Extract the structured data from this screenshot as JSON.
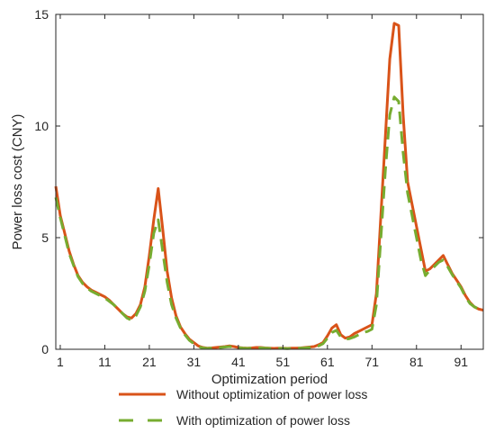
{
  "chart_data": {
    "type": "line",
    "xlabel": "Optimization period",
    "ylabel": "Power loss cost (CNY)",
    "xlim": [
      0,
      96
    ],
    "ylim": [
      0,
      15
    ],
    "x_ticks": [
      1,
      11,
      21,
      31,
      41,
      51,
      61,
      71,
      81,
      91
    ],
    "y_ticks": [
      0,
      5,
      10,
      15
    ],
    "x": [
      0,
      1,
      2,
      3,
      4,
      5,
      6,
      7,
      8,
      9,
      10,
      11,
      12,
      13,
      14,
      15,
      16,
      17,
      18,
      19,
      20,
      21,
      22,
      23,
      24,
      25,
      26,
      27,
      28,
      29,
      30,
      31,
      32,
      33,
      34,
      35,
      36,
      37,
      38,
      39,
      40,
      41,
      42,
      43,
      44,
      45,
      46,
      47,
      48,
      49,
      50,
      51,
      52,
      53,
      54,
      55,
      56,
      57,
      58,
      59,
      60,
      61,
      62,
      63,
      64,
      65,
      66,
      67,
      68,
      69,
      70,
      71,
      72,
      73,
      74,
      75,
      76,
      77,
      78,
      79,
      80,
      81,
      82,
      83,
      84,
      85,
      86,
      87,
      88,
      89,
      90,
      91,
      92,
      93,
      94,
      95,
      96
    ],
    "legend_position": "bottom",
    "series": [
      {
        "name": "Without optimization of power loss",
        "color": "#d95319",
        "style": "solid",
        "values": [
          7.3,
          6.0,
          5.2,
          4.4,
          3.8,
          3.3,
          3.0,
          2.8,
          2.65,
          2.55,
          2.45,
          2.35,
          2.2,
          2.0,
          1.8,
          1.6,
          1.45,
          1.4,
          1.6,
          2.0,
          2.8,
          4.2,
          5.8,
          7.2,
          5.4,
          3.5,
          2.3,
          1.5,
          1.0,
          0.7,
          0.45,
          0.3,
          0.15,
          0.08,
          0.05,
          0.06,
          0.08,
          0.1,
          0.12,
          0.15,
          0.12,
          0.08,
          0.06,
          0.05,
          0.06,
          0.08,
          0.08,
          0.06,
          0.05,
          0.04,
          0.05,
          0.05,
          0.04,
          0.05,
          0.05,
          0.06,
          0.08,
          0.1,
          0.12,
          0.2,
          0.3,
          0.6,
          0.95,
          1.1,
          0.65,
          0.5,
          0.55,
          0.7,
          0.8,
          0.9,
          1.0,
          1.1,
          2.5,
          6.0,
          9.5,
          13.0,
          14.6,
          14.5,
          10.5,
          7.5,
          6.5,
          5.5,
          4.5,
          3.5,
          3.6,
          3.8,
          4.0,
          4.2,
          3.8,
          3.4,
          3.1,
          2.8,
          2.4,
          2.1,
          1.9,
          1.8,
          1.75
        ]
      },
      {
        "name": "With optimization of power loss",
        "color": "#77ac30",
        "style": "dashed",
        "values": [
          6.8,
          5.9,
          5.1,
          4.3,
          3.75,
          3.25,
          2.95,
          2.75,
          2.6,
          2.5,
          2.4,
          2.3,
          2.15,
          2.0,
          1.8,
          1.6,
          1.4,
          1.3,
          1.5,
          1.9,
          2.6,
          3.8,
          5.2,
          5.8,
          4.4,
          3.0,
          2.0,
          1.4,
          0.95,
          0.65,
          0.4,
          0.25,
          0.12,
          0.06,
          0.04,
          0.05,
          0.06,
          0.08,
          0.1,
          0.12,
          0.1,
          0.07,
          0.05,
          0.04,
          0.05,
          0.06,
          0.06,
          0.05,
          0.04,
          0.03,
          0.04,
          0.04,
          0.03,
          0.04,
          0.04,
          0.05,
          0.06,
          0.08,
          0.1,
          0.15,
          0.25,
          0.5,
          0.75,
          0.85,
          0.55,
          0.45,
          0.48,
          0.55,
          0.65,
          0.75,
          0.8,
          0.9,
          2.0,
          5.0,
          8.0,
          10.5,
          11.3,
          11.1,
          8.8,
          7.0,
          6.0,
          5.0,
          4.0,
          3.3,
          3.55,
          3.7,
          3.9,
          4.0,
          3.7,
          3.35,
          3.05,
          2.75,
          2.35,
          2.05,
          1.9,
          1.8,
          1.75
        ]
      }
    ]
  }
}
